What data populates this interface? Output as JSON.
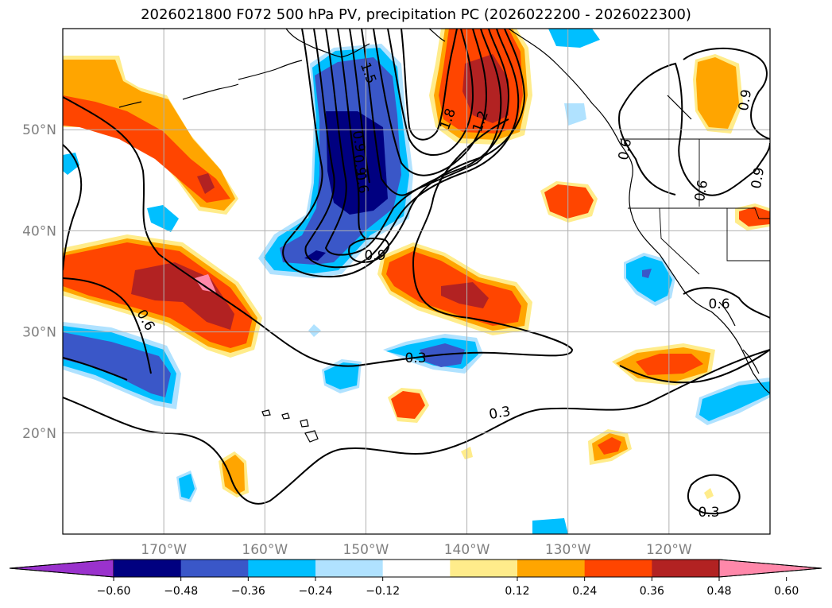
{
  "title": "2026021800 F072 500 hPa PV, precipitation PC (2026022200 - 2026022300)",
  "map": {
    "lon_range": [
      -180,
      -110
    ],
    "lat_range": [
      10,
      60
    ],
    "lat_ticks": [
      {
        "value": 50,
        "label": "50°N"
      },
      {
        "value": 40,
        "label": "40°N"
      },
      {
        "value": 30,
        "label": "30°N"
      },
      {
        "value": 20,
        "label": "20°N"
      }
    ],
    "lon_ticks": [
      {
        "value": -170,
        "label": "170°W"
      },
      {
        "value": -160,
        "label": "160°W"
      },
      {
        "value": -150,
        "label": "150°W"
      },
      {
        "value": -140,
        "label": "140°W"
      },
      {
        "value": -130,
        "label": "130°W"
      },
      {
        "value": -120,
        "label": "120°W"
      }
    ],
    "grid": true,
    "contour_labels": [
      {
        "text": "1.5"
      },
      {
        "text": "1.8"
      },
      {
        "text": "1.2"
      },
      {
        "text": "0.9"
      },
      {
        "text": "0.9"
      },
      {
        "text": "0.6"
      },
      {
        "text": "0.9"
      },
      {
        "text": "0.6"
      },
      {
        "text": "0.6"
      },
      {
        "text": "0.9"
      },
      {
        "text": "0.3"
      },
      {
        "text": "0.3"
      },
      {
        "text": "0.6"
      },
      {
        "text": "0.3"
      },
      {
        "text": "0.9"
      },
      {
        "text": "0.6"
      }
    ]
  },
  "colorbar": {
    "ticks": [
      "−0.60",
      "−0.48",
      "−0.36",
      "−0.24",
      "−0.12",
      "0.12",
      "0.24",
      "0.36",
      "0.48",
      "0.60"
    ],
    "colors": [
      "#9a32cd",
      "#000080",
      "#3a57c8",
      "#00bfff",
      "#b0e2ff",
      "#ffffff",
      "#ffec8b",
      "#ffa500",
      "#ff4500",
      "#b22222",
      "#ff88aa"
    ]
  }
}
